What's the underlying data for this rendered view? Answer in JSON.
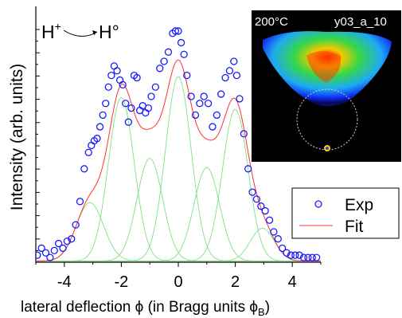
{
  "chart_data": {
    "type": "scatter",
    "xlabel_main": "lateral deflection ",
    "xlabel_phi": "ϕ",
    "xlabel_paren": " (in Bragg units ",
    "xlabel_phiB": "ϕ",
    "xlabel_sub": "B",
    "xlabel_close": ")",
    "ylabel": "Intensity (arb. units)",
    "xlim": [
      -5,
      5
    ],
    "ylim": [
      0,
      1.0
    ],
    "xticks": [
      -4,
      -2,
      0,
      2,
      4
    ],
    "xtick_labels": [
      "-4",
      "-2",
      "0",
      "2",
      "4"
    ],
    "annotation": {
      "left": "H",
      "left_sup": "+",
      "right": "H°"
    },
    "legend": {
      "placement": "lower-right",
      "entries": [
        {
          "label": "Exp",
          "marker": "circle",
          "color": "#1a1aff"
        },
        {
          "label": "Fit",
          "marker": "line",
          "color": "#ff3030"
        }
      ]
    },
    "inset": {
      "label_left": "200°C",
      "label_right": "y03_a_10",
      "background": "#000000"
    },
    "colors": {
      "exp": "#1a1aff",
      "fit": "#ff3030",
      "components": "#7fe07f"
    },
    "series": [
      {
        "name": "Exp",
        "x": [
          -4.95,
          -4.8,
          -4.65,
          -4.5,
          -4.35,
          -4.2,
          -4.05,
          -3.9,
          -3.75,
          -3.6,
          -3.45,
          -3.3,
          -3.15,
          -3.05,
          -2.95,
          -2.85,
          -2.75,
          -2.65,
          -2.55,
          -2.45,
          -2.35,
          -2.25,
          -2.15,
          -2.05,
          -1.95,
          -1.85,
          -1.75,
          -1.65,
          -1.55,
          -1.45,
          -1.35,
          -1.25,
          -1.15,
          -1.05,
          -0.95,
          -0.8,
          -0.65,
          -0.5,
          -0.35,
          -0.2,
          -0.1,
          0.0,
          0.1,
          0.2,
          0.3,
          0.45,
          0.6,
          0.75,
          0.9,
          1.05,
          1.2,
          1.35,
          1.5,
          1.65,
          1.8,
          1.95,
          2.05,
          2.15,
          2.3,
          2.45,
          2.6,
          2.75,
          2.9,
          3.05,
          3.2,
          3.35,
          3.5,
          3.65,
          3.8,
          3.95,
          4.1,
          4.25,
          4.4,
          4.55,
          4.7,
          4.85
        ],
        "y": [
          0.03,
          0.06,
          0.04,
          0.02,
          0.05,
          0.08,
          0.06,
          0.09,
          0.1,
          0.16,
          0.26,
          0.4,
          0.47,
          0.5,
          0.52,
          0.53,
          0.58,
          0.63,
          0.68,
          0.75,
          0.8,
          0.84,
          0.82,
          0.78,
          0.76,
          0.68,
          0.6,
          0.66,
          0.8,
          0.79,
          0.65,
          0.67,
          0.64,
          0.66,
          0.71,
          0.75,
          0.83,
          0.86,
          0.9,
          0.98,
          0.99,
          0.99,
          0.94,
          0.89,
          0.8,
          0.71,
          0.63,
          0.68,
          0.71,
          0.68,
          0.58,
          0.63,
          0.72,
          0.79,
          0.82,
          0.86,
          0.8,
          0.7,
          0.55,
          0.4,
          0.3,
          0.27,
          0.24,
          0.22,
          0.18,
          0.13,
          0.1,
          0.06,
          0.04,
          0.03,
          0.03,
          0.03,
          0.02,
          0.02,
          0.02,
          0.02
        ]
      },
      {
        "name": "Fit",
        "derived": "sum of components"
      }
    ],
    "components": [
      {
        "center": -3.1,
        "amplitude": 0.25,
        "sigma": 0.48
      },
      {
        "center": -2.0,
        "amplitude": 0.7,
        "sigma": 0.45
      },
      {
        "center": -1.0,
        "amplitude": 0.44,
        "sigma": 0.45
      },
      {
        "center": 0.0,
        "amplitude": 0.79,
        "sigma": 0.45
      },
      {
        "center": 1.0,
        "amplitude": 0.4,
        "sigma": 0.45
      },
      {
        "center": 2.0,
        "amplitude": 0.65,
        "sigma": 0.45
      },
      {
        "center": 2.95,
        "amplitude": 0.14,
        "sigma": 0.42
      }
    ]
  }
}
